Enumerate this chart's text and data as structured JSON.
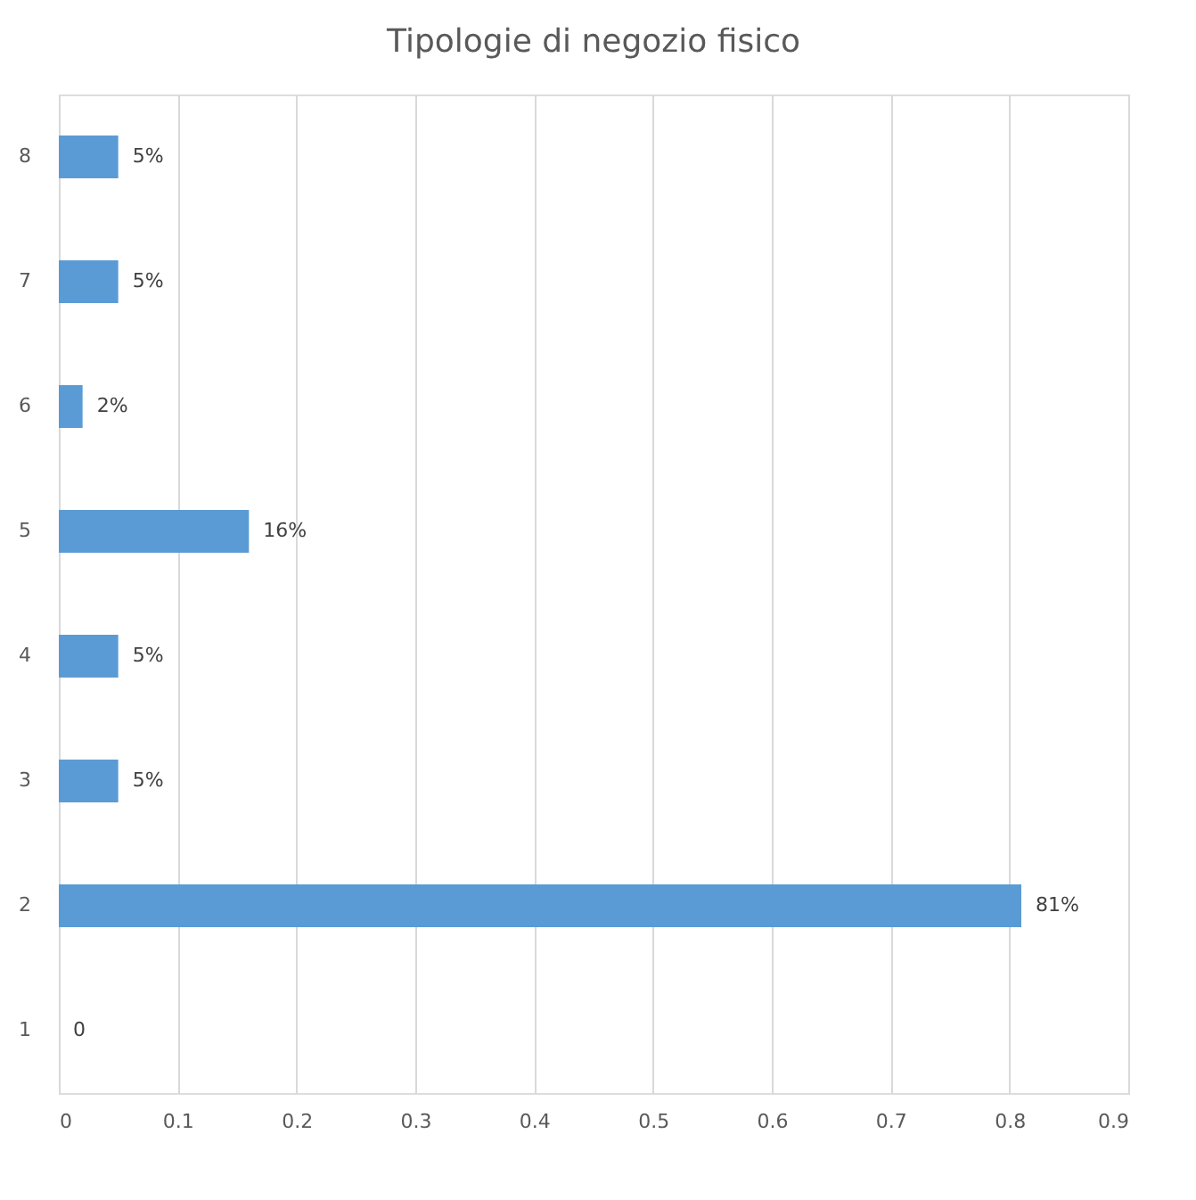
{
  "chart_data": {
    "type": "bar",
    "orientation": "horizontal",
    "title": "Tipologie di negozio fisico",
    "categories": [
      "8",
      "7",
      "6",
      "5",
      "4",
      "3",
      "2",
      "1"
    ],
    "values": [
      0.05,
      0.05,
      0.02,
      0.16,
      0.05,
      0.05,
      0.81,
      0
    ],
    "value_labels": [
      "5%",
      "5%",
      "2%",
      "16%",
      "5%",
      "5%",
      "81%",
      "0"
    ],
    "color": "#5b9bd5",
    "xlim": [
      0,
      0.9
    ],
    "xticks": [
      0,
      0.1,
      0.2,
      0.3,
      0.4,
      0.5,
      0.6,
      0.7,
      0.8,
      0.9
    ],
    "grid": "x"
  }
}
